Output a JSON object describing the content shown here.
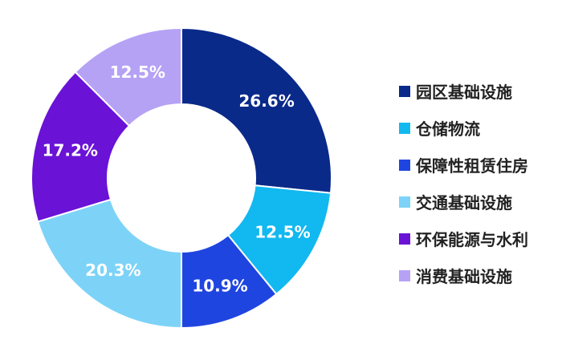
{
  "chart_data": {
    "type": "pie",
    "donut": true,
    "title": "",
    "legend_position": "right",
    "categories": [
      "园区基础设施",
      "仓储物流",
      "保障性租赁住房",
      "交通基础设施",
      "环保能源与水利",
      "消费基础设施"
    ],
    "values": [
      26.6,
      12.5,
      10.9,
      20.3,
      17.2,
      12.5
    ],
    "labels": [
      "26.6%",
      "12.5%",
      "10.9%",
      "20.3%",
      "17.2%",
      "12.5%"
    ],
    "colors": [
      "#0a2a8a",
      "#12b8f0",
      "#1f45e0",
      "#7dd3f7",
      "#6a12d6",
      "#b5a2f5"
    ]
  }
}
